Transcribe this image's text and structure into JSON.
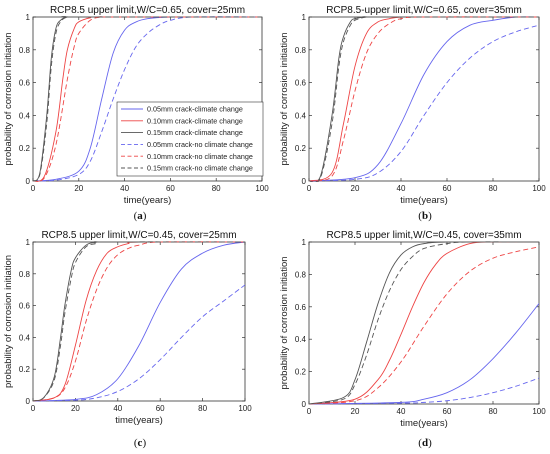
{
  "chart_data": [
    {
      "type": "line",
      "title": "RCP8.5 upper limit,W/C=0.65, cover=25mm",
      "label_open": "(",
      "label_letter": "a",
      "label_close": ")",
      "xlabel": "time(years)",
      "ylabel": "probability of corrosion initiation",
      "xlim": [
        0,
        100
      ],
      "ylim": [
        0,
        1
      ],
      "xticks": [
        "0",
        "20",
        "40",
        "60",
        "80",
        "100"
      ],
      "yticks": [
        "0",
        "0.2",
        "0.4",
        "0.6",
        "0.8",
        "1"
      ],
      "legend": "inside",
      "series": [
        {
          "name": "0.05mm crack-climate change",
          "color": "#6666ee",
          "dash": false,
          "x": [
            0,
            10,
            20,
            25,
            30,
            35,
            40,
            45,
            50,
            60,
            70,
            100
          ],
          "y": [
            0,
            0.01,
            0.06,
            0.2,
            0.5,
            0.78,
            0.92,
            0.97,
            0.99,
            1,
            1,
            1
          ]
        },
        {
          "name": "0.10mm crack-climate change",
          "color": "#ee4444",
          "dash": false,
          "x": [
            0,
            5,
            10,
            13,
            15,
            18,
            20,
            25,
            30,
            100
          ],
          "y": [
            0,
            0.03,
            0.3,
            0.62,
            0.8,
            0.93,
            0.97,
            0.995,
            1,
            1
          ]
        },
        {
          "name": "0.15mm crack-climate change",
          "color": "#555555",
          "dash": false,
          "x": [
            0,
            3,
            6,
            8,
            10,
            12,
            15,
            20,
            100
          ],
          "y": [
            0,
            0.05,
            0.4,
            0.75,
            0.93,
            0.98,
            1,
            1,
            1
          ]
        },
        {
          "name": "0.05mm crack-no climate change",
          "color": "#6666ee",
          "dash": true,
          "x": [
            0,
            10,
            20,
            25,
            30,
            35,
            40,
            45,
            50,
            55,
            60,
            70,
            100
          ],
          "y": [
            0,
            0.005,
            0.04,
            0.12,
            0.3,
            0.5,
            0.68,
            0.82,
            0.9,
            0.95,
            0.98,
            1,
            1
          ]
        },
        {
          "name": "0.10mm crack-no climate change",
          "color": "#ee4444",
          "dash": true,
          "x": [
            0,
            5,
            10,
            15,
            18,
            20,
            25,
            30,
            35,
            100
          ],
          "y": [
            0,
            0.02,
            0.22,
            0.62,
            0.82,
            0.9,
            0.98,
            1,
            1,
            1
          ]
        },
        {
          "name": "0.15mm crack-no climate change",
          "color": "#555555",
          "dash": true,
          "x": [
            0,
            3,
            6,
            8,
            10,
            12,
            15,
            20,
            100
          ],
          "y": [
            0,
            0.04,
            0.35,
            0.7,
            0.9,
            0.97,
            1,
            1,
            1
          ]
        }
      ]
    },
    {
      "type": "line",
      "title": "RCP8.5-upper limit,W/C=0.65, cover=35mm",
      "label_open": "(",
      "label_letter": "b",
      "label_close": ")",
      "xlabel": "time(years)",
      "ylabel": "probability of corrosion initiation",
      "xlim": [
        0,
        100
      ],
      "ylim": [
        0,
        1
      ],
      "xticks": [
        "0",
        "20",
        "40",
        "60",
        "80",
        "100"
      ],
      "yticks": [
        "0",
        "0.2",
        "0.4",
        "0.6",
        "0.8",
        "1"
      ],
      "series": [
        {
          "color": "#6666ee",
          "dash": false,
          "x": [
            0,
            20,
            30,
            40,
            50,
            60,
            70,
            80,
            90,
            100
          ],
          "y": [
            0,
            0.02,
            0.1,
            0.35,
            0.65,
            0.85,
            0.95,
            0.98,
            1,
            1
          ]
        },
        {
          "color": "#ee4444",
          "dash": false,
          "x": [
            0,
            10,
            15,
            20,
            25,
            30,
            35,
            40,
            50,
            100
          ],
          "y": [
            0,
            0.05,
            0.35,
            0.7,
            0.9,
            0.97,
            0.99,
            1,
            1,
            1
          ]
        },
        {
          "color": "#555555",
          "dash": false,
          "x": [
            0,
            5,
            10,
            13,
            15,
            18,
            20,
            25,
            30,
            100
          ],
          "y": [
            0,
            0.03,
            0.4,
            0.75,
            0.88,
            0.97,
            0.99,
            1,
            1,
            1
          ]
        },
        {
          "color": "#6666ee",
          "dash": true,
          "x": [
            0,
            20,
            30,
            40,
            50,
            60,
            70,
            80,
            90,
            100
          ],
          "y": [
            0,
            0.01,
            0.05,
            0.18,
            0.4,
            0.6,
            0.75,
            0.85,
            0.91,
            0.95
          ]
        },
        {
          "color": "#ee4444",
          "dash": true,
          "x": [
            0,
            10,
            15,
            20,
            25,
            30,
            35,
            40,
            50,
            100
          ],
          "y": [
            0,
            0.03,
            0.25,
            0.55,
            0.78,
            0.9,
            0.96,
            0.99,
            1,
            1
          ]
        },
        {
          "color": "#555555",
          "dash": true,
          "x": [
            0,
            5,
            10,
            13,
            15,
            18,
            20,
            25,
            30,
            100
          ],
          "y": [
            0,
            0.02,
            0.35,
            0.7,
            0.85,
            0.95,
            0.98,
            1,
            1,
            1
          ]
        }
      ]
    },
    {
      "type": "line",
      "title": "RCP8.5 upper limit,W/C=0.45, cover=25mm",
      "label_open": "(",
      "label_letter": "c",
      "label_close": ")",
      "xlabel": "time(years)",
      "ylabel": "probability of corrosion initiation",
      "xlim": [
        0,
        100
      ],
      "ylim": [
        0,
        1
      ],
      "xticks": [
        "0",
        "20",
        "40",
        "60",
        "80",
        "100"
      ],
      "yticks": [
        "0",
        "0.2",
        "0.4",
        "0.6",
        "0.8",
        "1"
      ],
      "series": [
        {
          "color": "#6666ee",
          "dash": false,
          "x": [
            0,
            20,
            30,
            40,
            50,
            60,
            70,
            80,
            90,
            100
          ],
          "y": [
            0,
            0.01,
            0.04,
            0.14,
            0.35,
            0.62,
            0.83,
            0.93,
            0.98,
            1
          ]
        },
        {
          "color": "#ee4444",
          "dash": false,
          "x": [
            0,
            10,
            15,
            20,
            25,
            30,
            35,
            40,
            45,
            50,
            100
          ],
          "y": [
            0,
            0.02,
            0.1,
            0.35,
            0.63,
            0.82,
            0.93,
            0.97,
            0.99,
            1,
            1
          ]
        },
        {
          "color": "#555555",
          "dash": false,
          "x": [
            0,
            5,
            10,
            13,
            15,
            18,
            20,
            25,
            30,
            35,
            100
          ],
          "y": [
            0,
            0.02,
            0.15,
            0.4,
            0.6,
            0.82,
            0.9,
            0.98,
            1,
            1,
            1
          ]
        },
        {
          "color": "#6666ee",
          "dash": true,
          "x": [
            0,
            20,
            30,
            40,
            50,
            60,
            70,
            80,
            90,
            100
          ],
          "y": [
            0,
            0.005,
            0.02,
            0.06,
            0.14,
            0.26,
            0.4,
            0.53,
            0.63,
            0.73
          ]
        },
        {
          "color": "#ee4444",
          "dash": true,
          "x": [
            0,
            10,
            15,
            20,
            25,
            30,
            35,
            40,
            45,
            50,
            60,
            100
          ],
          "y": [
            0,
            0.02,
            0.08,
            0.25,
            0.5,
            0.7,
            0.84,
            0.92,
            0.96,
            0.98,
            1,
            1
          ]
        },
        {
          "color": "#555555",
          "dash": true,
          "x": [
            0,
            5,
            10,
            13,
            15,
            18,
            20,
            25,
            30,
            35,
            100
          ],
          "y": [
            0,
            0.02,
            0.13,
            0.35,
            0.55,
            0.77,
            0.87,
            0.97,
            0.99,
            1,
            1
          ]
        }
      ]
    },
    {
      "type": "line",
      "title": "RCP8.5 upper limit,W/C=0.45, cover=35mm",
      "label_open": "(",
      "label_letter": "d",
      "label_close": ")",
      "xlabel": "time(years)",
      "ylabel": "probability of corrosion initiation",
      "xlim": [
        0,
        100
      ],
      "ylim": [
        0,
        1
      ],
      "xticks": [
        "0",
        "20",
        "40",
        "60",
        "80",
        "100"
      ],
      "yticks": [
        "0",
        "0.2",
        "0.4",
        "0.6",
        "0.8",
        "1"
      ],
      "series": [
        {
          "color": "#6666ee",
          "dash": false,
          "x": [
            0,
            40,
            50,
            60,
            70,
            80,
            90,
            100
          ],
          "y": [
            0,
            0.01,
            0.03,
            0.07,
            0.15,
            0.28,
            0.44,
            0.62
          ]
        },
        {
          "color": "#ee4444",
          "dash": false,
          "x": [
            0,
            20,
            30,
            35,
            40,
            45,
            50,
            55,
            60,
            70,
            80,
            100
          ],
          "y": [
            0,
            0.03,
            0.15,
            0.27,
            0.43,
            0.6,
            0.75,
            0.86,
            0.93,
            0.99,
            1,
            1
          ]
        },
        {
          "color": "#555555",
          "dash": false,
          "x": [
            0,
            15,
            20,
            25,
            30,
            35,
            40,
            45,
            50,
            60,
            100
          ],
          "y": [
            0,
            0.04,
            0.15,
            0.38,
            0.62,
            0.81,
            0.92,
            0.97,
            0.99,
            1,
            1
          ]
        },
        {
          "color": "#6666ee",
          "dash": true,
          "x": [
            0,
            40,
            50,
            60,
            70,
            80,
            90,
            100
          ],
          "y": [
            0,
            0.005,
            0.01,
            0.02,
            0.04,
            0.07,
            0.11,
            0.16
          ]
        },
        {
          "color": "#ee4444",
          "dash": true,
          "x": [
            0,
            20,
            30,
            40,
            50,
            60,
            70,
            80,
            90,
            100
          ],
          "y": [
            0,
            0.02,
            0.1,
            0.26,
            0.48,
            0.68,
            0.82,
            0.9,
            0.94,
            0.97
          ]
        },
        {
          "color": "#555555",
          "dash": true,
          "x": [
            0,
            15,
            20,
            25,
            30,
            35,
            40,
            45,
            50,
            60,
            70,
            100
          ],
          "y": [
            0,
            0.03,
            0.12,
            0.3,
            0.52,
            0.7,
            0.83,
            0.91,
            0.96,
            0.99,
            1,
            1
          ]
        }
      ]
    }
  ]
}
